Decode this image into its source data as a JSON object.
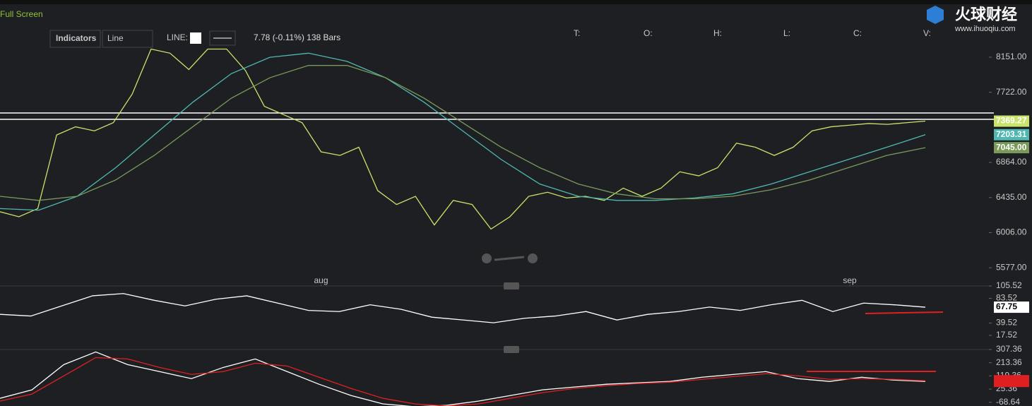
{
  "toolbar": {
    "fullscreen": "Full Screen",
    "indicators": "Indicators",
    "chart_type": "Line",
    "line_label": "LINE:",
    "info": "7.78 (-0.11%) 138 Bars",
    "ohlc": [
      "T:",
      "O:",
      "H:",
      "L:",
      "C:",
      "V:"
    ]
  },
  "logo": {
    "name": "火球财经",
    "url": "www.ihuoqiu.com"
  },
  "chart_data": [
    {
      "type": "line",
      "xlim": [
        0,
        49
      ],
      "xticks": [
        {
          "value": 17,
          "label": "aug"
        },
        {
          "value": 45,
          "label": "sep"
        }
      ],
      "ylim": [
        5354,
        8850
      ],
      "yticks": [
        {
          "value": 8151,
          "label": "8151.00"
        },
        {
          "value": 7722,
          "label": "7722.00"
        },
        {
          "value": 6864,
          "label": "6864.00"
        },
        {
          "value": 6435,
          "label": "6435.00"
        },
        {
          "value": 6006,
          "label": "6006.00"
        },
        {
          "value": 5577,
          "label": "5577.00"
        }
      ],
      "levels": [
        7469,
        7391
      ],
      "series": [
        {
          "color": "#c9e36b",
          "values": [
            6261,
            6200,
            6300,
            7200,
            7300,
            7250,
            7350,
            7700,
            8250,
            8200,
            8000,
            8250,
            8250,
            7987,
            7550,
            7450,
            7350,
            6994,
            6950,
            7050,
            6520,
            6350,
            6450,
            6100,
            6400,
            6350,
            6050,
            6200,
            6450,
            6500,
            6430,
            6450,
            6400,
            6550,
            6450,
            6550,
            6750,
            6700,
            6800,
            7100,
            7050,
            6950,
            7050,
            7250,
            7300,
            7320,
            7340,
            7330,
            7350,
            7369.27
          ]
        },
        {
          "color": "#4fb8b0",
          "values": [
            6300,
            6280,
            6450,
            6800,
            7200,
            7600,
            7950,
            8150,
            8200,
            8100,
            7900,
            7600,
            7250,
            6900,
            6600,
            6450,
            6400,
            6400,
            6430,
            6480,
            6600,
            6750,
            6900,
            7050,
            7203.31
          ]
        },
        {
          "color": "#7a9a5a",
          "values": [
            6450,
            6400,
            6450,
            6650,
            6950,
            7300,
            7650,
            7900,
            8050,
            8050,
            7900,
            7650,
            7350,
            7050,
            6800,
            6600,
            6480,
            6420,
            6420,
            6450,
            6530,
            6650,
            6800,
            6950,
            {
              "value": 7045,
              "label": "7045.00"
            }
          ]
        }
      ]
    },
    {
      "type": "line",
      "ylim": [
        -7.6,
        105.52
      ],
      "yticks": [
        105.52,
        83.52,
        39.52,
        17.52
      ],
      "series": [
        {
          "color": "#ffffff",
          "values": [
            55,
            52,
            70,
            88,
            92,
            80,
            70,
            82,
            88,
            75,
            62,
            60,
            72,
            64,
            50,
            45,
            40,
            48,
            52,
            60,
            45,
            55,
            60,
            68,
            62,
            72,
            80,
            60,
            75,
            72,
            67.75
          ]
        }
      ]
    },
    {
      "type": "line",
      "ylim": [
        -95,
        307.36
      ],
      "yticks": [
        307.36,
        213.36,
        119.36,
        25.36,
        -68.64
      ],
      "series": [
        {
          "color": "#ffffff",
          "values": [
            -40,
            20,
            200,
            290,
            200,
            150,
            100,
            180,
            240,
            150,
            60,
            -20,
            -80,
            -100,
            -90,
            -60,
            -20,
            20,
            40,
            60,
            70,
            80,
            110,
            130,
            150,
            100,
            80,
            110,
            90,
            79.95
          ]
        },
        {
          "color": "#e02020",
          "values": [
            -60,
            -10,
            120,
            250,
            240,
            180,
            130,
            150,
            210,
            190,
            110,
            30,
            -40,
            -80,
            -95,
            -80,
            -40,
            0,
            30,
            50,
            65,
            75,
            95,
            115,
            135,
            120,
            95,
            100,
            95,
            85
          ]
        }
      ]
    }
  ]
}
